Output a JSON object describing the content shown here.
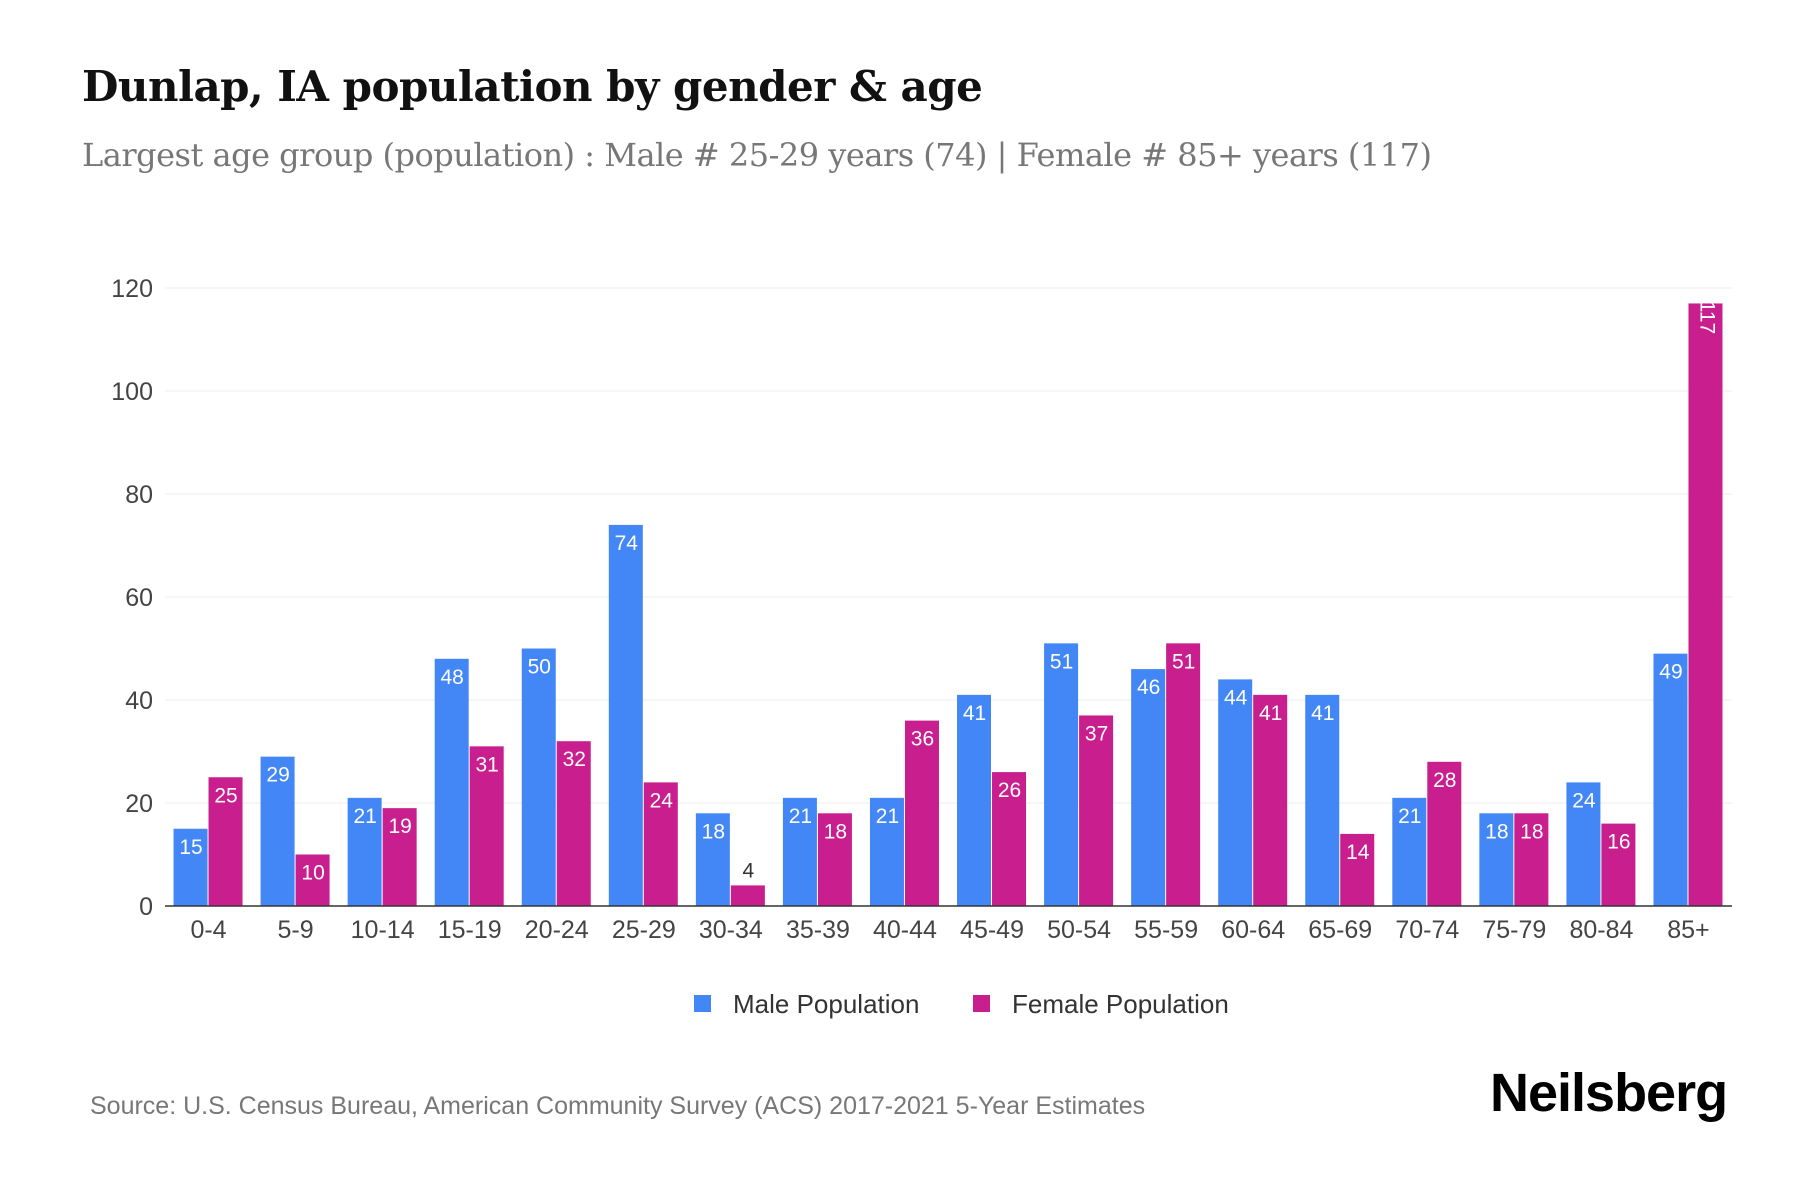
{
  "chart_data": {
    "type": "bar",
    "title": "Dunlap, IA population by gender & age",
    "subtitle": "Largest age group (population) : Male # 25-29 years (74) | Female # 85+ years (117)",
    "categories": [
      "0-4",
      "5-9",
      "10-14",
      "15-19",
      "20-24",
      "25-29",
      "30-34",
      "35-39",
      "40-44",
      "45-49",
      "50-54",
      "55-59",
      "60-64",
      "65-69",
      "70-74",
      "75-79",
      "80-84",
      "85+"
    ],
    "series": [
      {
        "name": "Male Population",
        "color": "#4287f5",
        "values": [
          15,
          29,
          21,
          48,
          50,
          74,
          18,
          21,
          21,
          41,
          51,
          46,
          44,
          41,
          21,
          18,
          24,
          49
        ]
      },
      {
        "name": "Female Population",
        "color": "#c91e8e",
        "values": [
          25,
          10,
          19,
          31,
          32,
          24,
          4,
          18,
          36,
          26,
          37,
          51,
          41,
          14,
          28,
          18,
          16,
          117
        ]
      }
    ],
    "ylim": [
      0,
      120
    ],
    "yticks": [
      0,
      20,
      40,
      60,
      80,
      100,
      120
    ],
    "grid": true,
    "legend": "bottom",
    "xlabel": "",
    "ylabel": ""
  },
  "source": "Source: U.S. Census Bureau, American Community Survey (ACS) 2017-2021 5-Year Estimates",
  "logo": "Neilsberg"
}
